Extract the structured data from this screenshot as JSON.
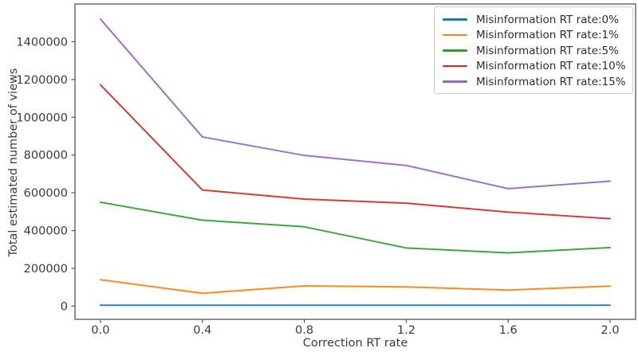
{
  "figure": {
    "background": "#ffffff"
  },
  "chart_data": {
    "type": "line",
    "title": "",
    "xlabel": "Correction RT rate",
    "ylabel": "Total estimated number of views",
    "x": [
      0.0,
      0.4,
      0.8,
      1.2,
      1.6,
      2.0
    ],
    "xtick_labels": [
      "0.0",
      "0.4",
      "0.8",
      "1.2",
      "1.6",
      "2.0"
    ],
    "yticks": [
      0,
      200000,
      400000,
      600000,
      800000,
      1000000,
      1200000,
      1400000
    ],
    "xlim": [
      -0.1,
      2.1
    ],
    "ylim": [
      -70000,
      1600000
    ],
    "grid": false,
    "legend_position": "upper-right",
    "axis_color": "#555555",
    "text_color": "#3a3a3a",
    "series": [
      {
        "name": "Misinformation RT rate:0%",
        "color": "#1f77b4",
        "values": [
          5000,
          5000,
          5000,
          5000,
          5000,
          5000
        ]
      },
      {
        "name": "Misinformation RT rate:1%",
        "color": "#ff7f0e",
        "values": [
          140000,
          68000,
          107000,
          102000,
          85000,
          106000
        ]
      },
      {
        "name": "Misinformation RT rate:5%",
        "color": "#2ca02c",
        "values": [
          550000,
          455000,
          420000,
          308000,
          282000,
          310000
        ]
      },
      {
        "name": "Misinformation RT rate:10%",
        "color": "#d62728",
        "values": [
          1172000,
          615000,
          567000,
          545000,
          498000,
          463000
        ]
      },
      {
        "name": "Misinformation RT rate:15%",
        "color": "#9467bd",
        "values": [
          1520000,
          896000,
          798000,
          745000,
          622000,
          662000
        ]
      }
    ]
  }
}
